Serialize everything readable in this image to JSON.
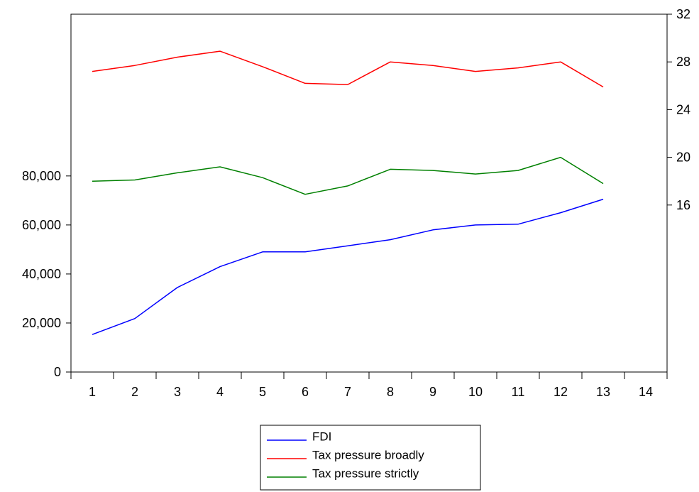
{
  "chart_data": {
    "type": "line",
    "title": "",
    "xlabel": "",
    "ylabel_left": "",
    "ylabel_right": "",
    "x": [
      1,
      2,
      3,
      4,
      5,
      6,
      7,
      8,
      9,
      10,
      11,
      12,
      13
    ],
    "x_ticks": [
      "1",
      "2",
      "3",
      "4",
      "5",
      "6",
      "7",
      "8",
      "9",
      "10",
      "11",
      "12",
      "13",
      "14"
    ],
    "x_range": [
      0.5,
      14.5
    ],
    "y_left_range": [
      0,
      146000
    ],
    "y_left_ticks": [
      {
        "value": 0,
        "label": "0"
      },
      {
        "value": 20000,
        "label": "20,000"
      },
      {
        "value": 40000,
        "label": "40,000"
      },
      {
        "value": 60000,
        "label": "60,000"
      },
      {
        "value": 80000,
        "label": "80,000"
      }
    ],
    "y_right_range": [
      2,
      32
    ],
    "y_right_ticks": [
      {
        "value": 16,
        "label": "16"
      },
      {
        "value": 20,
        "label": "20"
      },
      {
        "value": 24,
        "label": "24"
      },
      {
        "value": 28,
        "label": "28"
      },
      {
        "value": 32,
        "label": "32"
      }
    ],
    "grid": false,
    "legend_position": "bottom-center",
    "series": [
      {
        "name": "FDI",
        "axis": "left",
        "color": "#0000ff",
        "values": [
          15300,
          21800,
          34500,
          43000,
          49000,
          49000,
          51500,
          54000,
          58000,
          60000,
          60300,
          65000,
          70500
        ]
      },
      {
        "name": "Tax pressure broadly",
        "axis": "right",
        "color": "#ff0000",
        "values": [
          27.2,
          27.7,
          28.4,
          28.9,
          27.6,
          26.2,
          26.1,
          28.0,
          27.7,
          27.2,
          27.5,
          28.0,
          25.9
        ]
      },
      {
        "name": "Tax pressure strictly",
        "axis": "right",
        "color": "#008000",
        "values": [
          18.0,
          18.1,
          18.7,
          19.2,
          18.3,
          16.9,
          17.6,
          19.0,
          18.9,
          18.6,
          18.9,
          20.0,
          17.8
        ]
      }
    ]
  }
}
